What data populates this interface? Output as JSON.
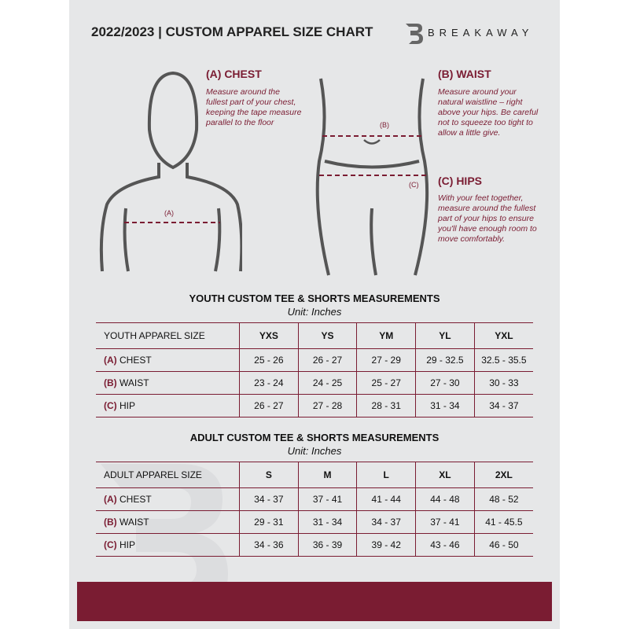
{
  "header": {
    "title": "2022/2023  |  CUSTOM APPAREL SIZE CHART",
    "brand": "BREAKAWAY",
    "logo_letter": "B"
  },
  "chest": {
    "heading": "(A) CHEST",
    "text": "Measure around the fullest part of your chest, keeping the tape measure parallel to the floor",
    "marker": "(A)"
  },
  "waist": {
    "heading": "(B) WAIST",
    "text": "Measure around your natural waistline – right above your hips. Be careful not to squeeze too tight to allow a little give.",
    "marker": "(B)"
  },
  "hips": {
    "heading": "(C) HIPS",
    "text": "With your feet together, measure around the fullest part of your hips to ensure you'll have enough room to move comfortably.",
    "marker": "(C)"
  },
  "colors": {
    "accent": "#7a1c32",
    "background": "#e6e7e8"
  },
  "youth": {
    "title": "YOUTH CUSTOM TEE & SHORTS MEASUREMENTS",
    "unit": "Unit: Inches",
    "headers": [
      "YOUTH APPAREL SIZE",
      "YXS",
      "YS",
      "YM",
      "YL",
      "YXL"
    ],
    "rows": [
      {
        "code": "(A)",
        "name": "CHEST",
        "values": [
          "25 - 26",
          "26 - 27",
          "27 - 29",
          "29 - 32.5",
          "32.5 - 35.5"
        ]
      },
      {
        "code": "(B)",
        "name": "WAIST",
        "values": [
          "23 - 24",
          "24 - 25",
          "25 - 27",
          "27 - 30",
          "30 - 33"
        ]
      },
      {
        "code": "(C)",
        "name": "HIP",
        "values": [
          "26 - 27",
          "27 - 28",
          "28 - 31",
          "31 - 34",
          "34 - 37"
        ]
      }
    ]
  },
  "adult": {
    "title": "ADULT CUSTOM TEE & SHORTS MEASUREMENTS",
    "unit": "Unit: Inches",
    "headers": [
      "ADULT APPAREL SIZE",
      "S",
      "M",
      "L",
      "XL",
      "2XL"
    ],
    "rows": [
      {
        "code": "(A)",
        "name": "CHEST",
        "values": [
          "34 - 37",
          "37 - 41",
          "41 - 44",
          "44 - 48",
          "48 - 52"
        ]
      },
      {
        "code": "(B)",
        "name": "WAIST",
        "values": [
          "29 - 31",
          "31 - 34",
          "34 - 37",
          "37 - 41",
          "41 - 45.5"
        ]
      },
      {
        "code": "(C)",
        "name": "HIP",
        "values": [
          "34 - 36",
          "36 - 39",
          "39 - 42",
          "43 - 46",
          "46 - 50"
        ]
      }
    ]
  }
}
